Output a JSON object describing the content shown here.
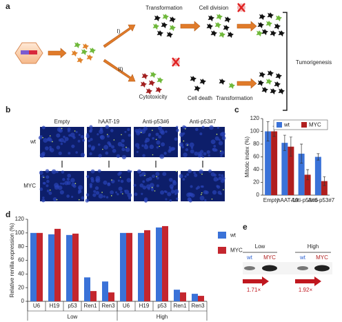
{
  "panel_labels": [
    "a",
    "b",
    "c",
    "d",
    "e"
  ],
  "diagram": {
    "top_steps": [
      "Transformation",
      "Cell division"
    ],
    "path_labels": [
      "I)",
      "II)"
    ],
    "bottom_steps": [
      "Cytotoxicity",
      "Cell death",
      "Transformation"
    ],
    "outcome": "Tumorigenesis"
  },
  "images": {
    "columns": [
      "Empty",
      "hAAT-19",
      "Anti-p53#6",
      "Anti-p53#7"
    ],
    "rows": [
      "wt",
      "MYC"
    ]
  },
  "blot": {
    "groups": [
      "Low",
      "High"
    ],
    "lanes": [
      "wt",
      "MYC",
      "wt",
      "MYC"
    ],
    "fold_changes": [
      "1.71×",
      "1.92×"
    ]
  },
  "chart_data": [
    {
      "type": "bar",
      "ylabel": "Mitotic index (%)",
      "categories": [
        "Empty",
        "hAAT-19",
        "Anti-p53#6",
        "Anti-p53#7"
      ],
      "series": [
        {
          "name": "wt",
          "color": "#3a72d8",
          "values": [
            100,
            82,
            65,
            60
          ],
          "errors": [
            15,
            12,
            15,
            5
          ]
        },
        {
          "name": "MYC",
          "color": "#b01e1e",
          "values": [
            100,
            76,
            32,
            22
          ],
          "errors": [
            8,
            15,
            8,
            7
          ]
        }
      ],
      "ylim": [
        0,
        120
      ],
      "yticks": [
        0,
        20,
        40,
        60,
        80,
        100,
        120
      ],
      "legend": "top"
    },
    {
      "type": "bar",
      "ylabel": "Relative renilla expression (%)",
      "categories": [
        "U6",
        "H19",
        "p53",
        "Ren1",
        "Ren3",
        "U6",
        "H19",
        "p53",
        "Ren1",
        "Ren3"
      ],
      "groups": [
        "Low",
        "High"
      ],
      "series": [
        {
          "name": "wt",
          "color": "#3a72d8",
          "values": [
            100,
            98,
            97,
            35,
            29,
            100,
            100,
            108,
            17,
            11
          ]
        },
        {
          "name": "MYC",
          "color": "#c4262e",
          "values": [
            100,
            106,
            99,
            15,
            13,
            100,
            104,
            110,
            13,
            8
          ]
        }
      ],
      "ylim": [
        0,
        120
      ],
      "yticks": [
        0,
        20,
        40,
        60,
        80,
        100,
        120
      ],
      "legend": "right"
    }
  ]
}
